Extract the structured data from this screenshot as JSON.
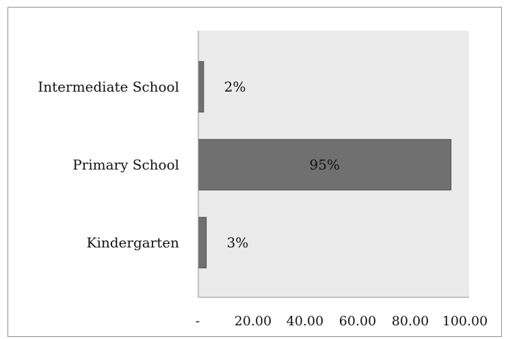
{
  "chart_data": {
    "type": "bar",
    "orientation": "horizontal",
    "categories": [
      "Intermediate School",
      "Primary School",
      "Kindergarten"
    ],
    "values": [
      2,
      95,
      3
    ],
    "data_labels": [
      "2%",
      "95%",
      "3%"
    ],
    "xlim": [
      0,
      100
    ],
    "x_ticks": [
      "-",
      "20.00",
      "40.00",
      "60.00",
      "80.00",
      "100.00"
    ],
    "grid": false,
    "legend": "none",
    "colors": {
      "plot_background": "#ebebeb",
      "bar_fill": "#707070",
      "bar_stroke": "#4a4a4a",
      "axis": "#8c8c8c"
    }
  }
}
